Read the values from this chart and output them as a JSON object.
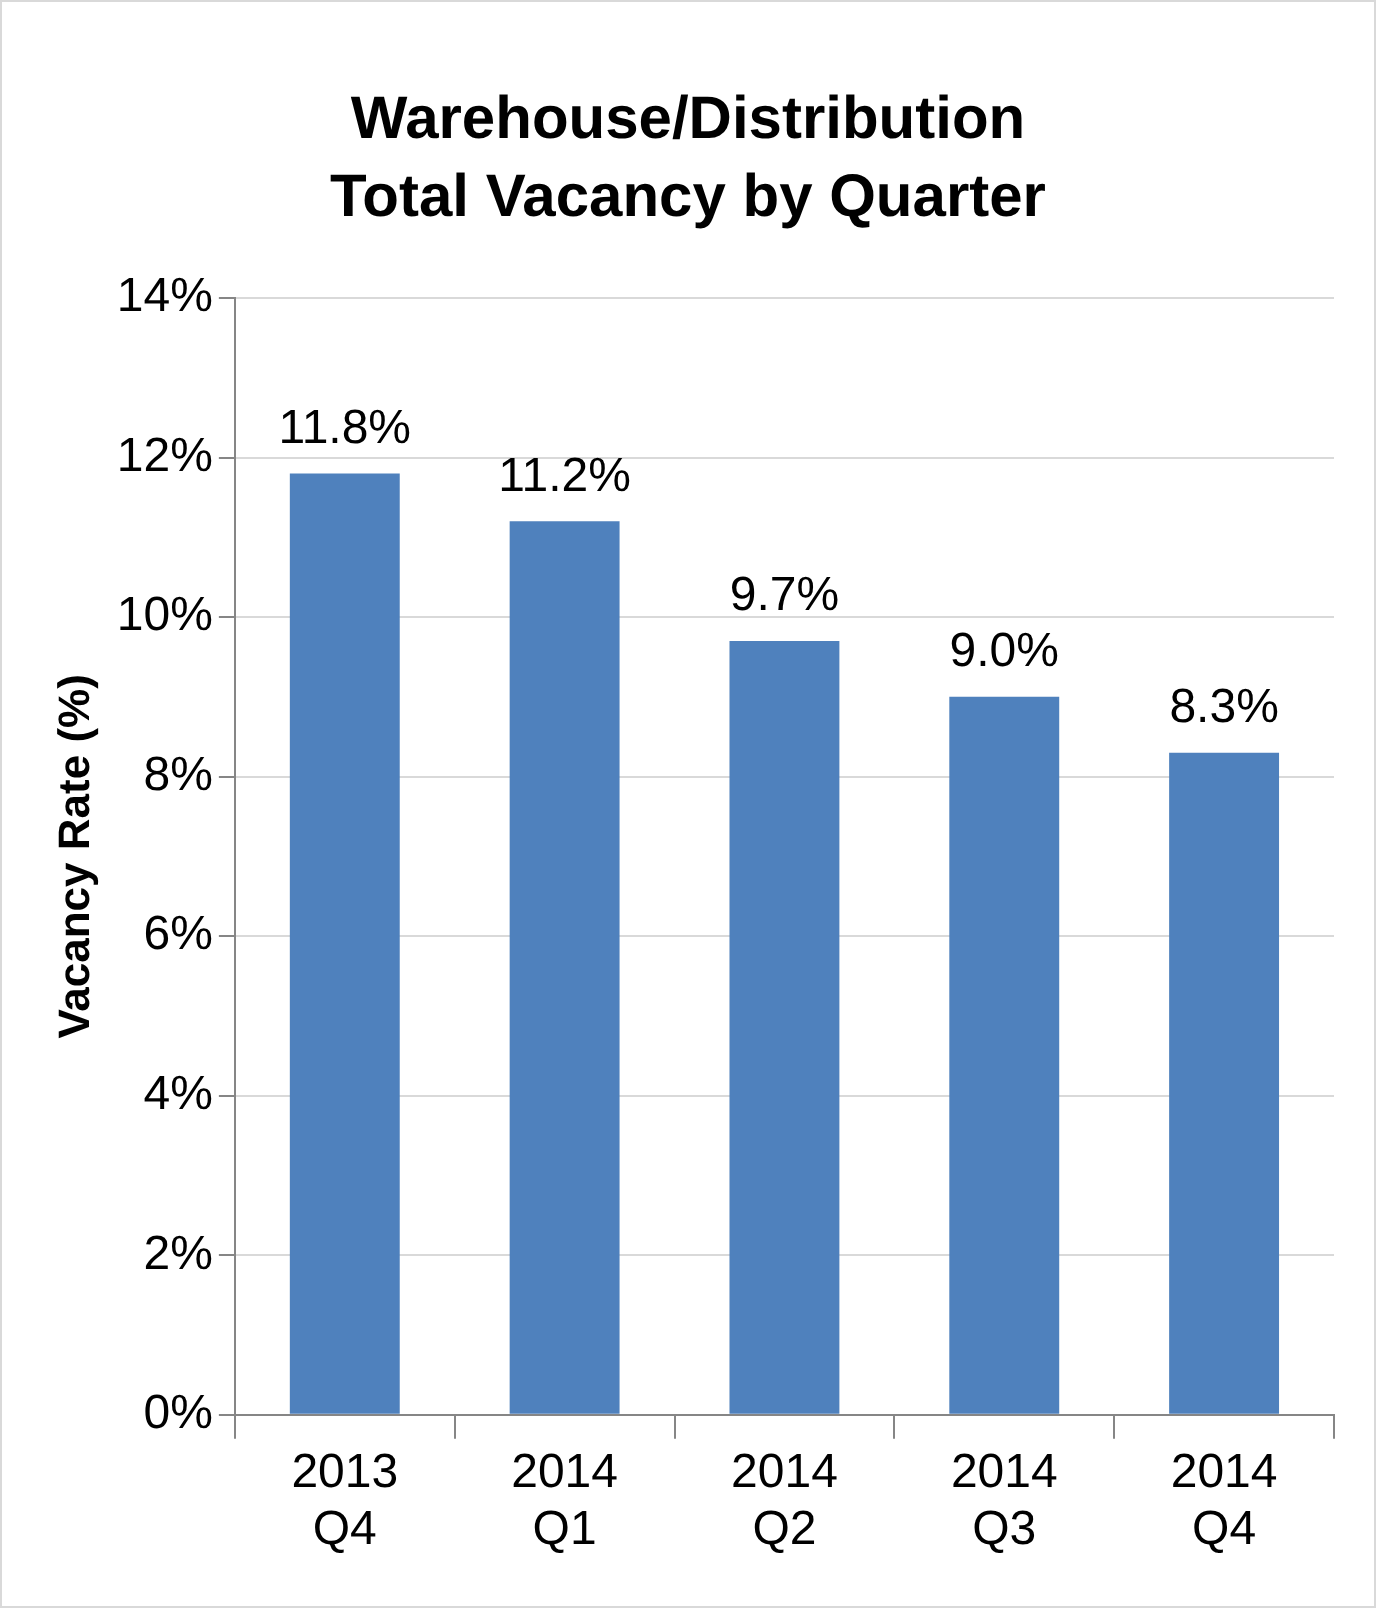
{
  "chart_data": {
    "type": "bar",
    "title": "Warehouse/Distribution\nTotal Vacancy by Quarter",
    "ylabel": "Vacancy Rate (%)",
    "categories": [
      "2013\nQ4",
      "2014\nQ1",
      "2014\nQ2",
      "2014\nQ3",
      "2014\nQ4"
    ],
    "values": [
      11.8,
      11.2,
      9.7,
      9.0,
      8.3
    ],
    "value_labels": [
      "11.8%",
      "11.2%",
      "9.7%",
      "9.0%",
      "8.3%"
    ],
    "color": "#4f81bd",
    "ylim": [
      0,
      14
    ],
    "yticks": [
      {
        "value": 0,
        "label": "0%"
      },
      {
        "value": 2,
        "label": "2%"
      },
      {
        "value": 4,
        "label": "4%"
      },
      {
        "value": 6,
        "label": "6%"
      },
      {
        "value": 8,
        "label": "8%"
      },
      {
        "value": 10,
        "label": "10%"
      },
      {
        "value": 12,
        "label": "12%"
      },
      {
        "value": 14,
        "label": "14%"
      }
    ],
    "grid": "y",
    "legend": false
  }
}
